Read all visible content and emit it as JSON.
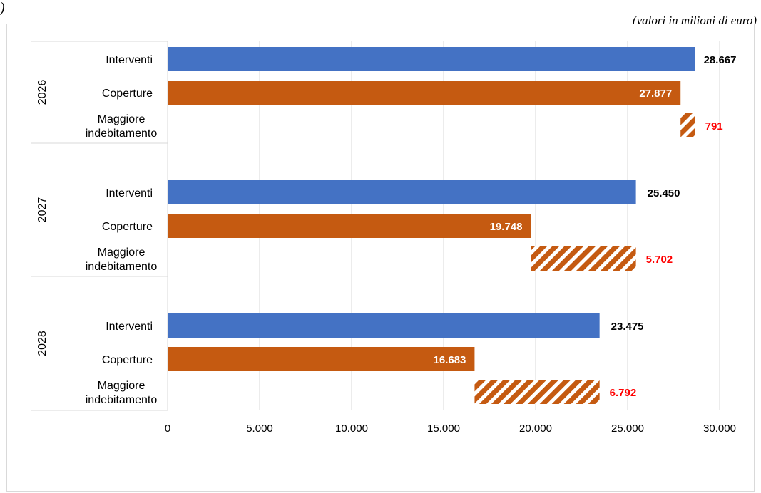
{
  "header": {
    "top_glyph": ")",
    "unit_note": "(valori in milioni di euro)"
  },
  "chart_data": {
    "type": "bar",
    "orientation": "horizontal",
    "title": "",
    "xlabel": "",
    "ylabel": "",
    "xlim": [
      0,
      30000
    ],
    "xticks": [
      0,
      5000,
      10000,
      15000,
      20000,
      25000,
      30000
    ],
    "xtick_labels": [
      "0",
      "5.000",
      "10.000",
      "15.000",
      "20.000",
      "25.000",
      "30.000"
    ],
    "grid": "vertical",
    "legend": "none",
    "colors": {
      "interventi": "#4472c4",
      "coperture": "#c55a11",
      "indebitamento": "#c55a11",
      "indebitamento_label": "#ff0000"
    },
    "groups": [
      {
        "year": "2026",
        "bars": [
          {
            "category": "Interventi",
            "value": 28667,
            "start": 0,
            "label": "28.667",
            "style": "interventi"
          },
          {
            "category": "Coperture",
            "value": 27877,
            "start": 0,
            "label": "27.877",
            "style": "coperture"
          },
          {
            "category": "Maggiore indebitamento",
            "value": 791,
            "start": 27877,
            "label": "791",
            "style": "indebitamento"
          }
        ]
      },
      {
        "year": "2027",
        "bars": [
          {
            "category": "Interventi",
            "value": 25450,
            "start": 0,
            "label": "25.450",
            "style": "interventi"
          },
          {
            "category": "Coperture",
            "value": 19748,
            "start": 0,
            "label": "19.748",
            "style": "coperture"
          },
          {
            "category": "Maggiore indebitamento",
            "value": 5702,
            "start": 19748,
            "label": "5.702",
            "style": "indebitamento"
          }
        ]
      },
      {
        "year": "2028",
        "bars": [
          {
            "category": "Interventi",
            "value": 23475,
            "start": 0,
            "label": "23.475",
            "style": "interventi"
          },
          {
            "category": "Coperture",
            "value": 16683,
            "start": 0,
            "label": "16.683",
            "style": "coperture"
          },
          {
            "category": "Maggiore indebitamento",
            "value": 6792,
            "start": 16683,
            "label": "6.792",
            "style": "indebitamento"
          }
        ]
      }
    ]
  }
}
